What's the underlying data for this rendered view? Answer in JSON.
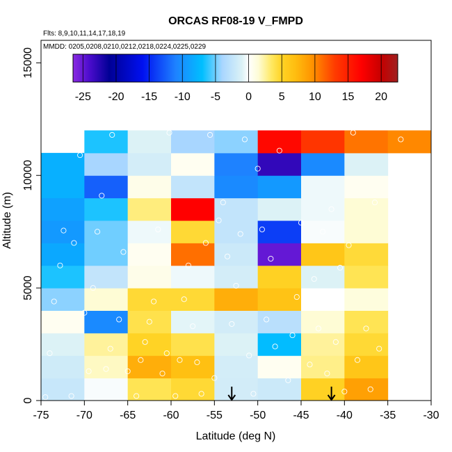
{
  "chart_data": {
    "type": "heatmap",
    "title": "ORCAS RF08-19 V_FMPD",
    "annotation_flights": "Flts: 8,9,10,11,14,17,18,19",
    "annotation_dates": "MMDD: 0205,0208,0210,0212,0218,0224,0225,0229",
    "xlabel": "Latitude (deg N)",
    "ylabel": "Altitude (m)",
    "xlim": [
      -75,
      -30
    ],
    "ylim": [
      0,
      16000
    ],
    "x_ticks": [
      -75,
      -70,
      -65,
      -60,
      -55,
      -50,
      -45,
      -40,
      -35,
      -30
    ],
    "y_ticks": [
      0,
      5000,
      10000,
      15000
    ],
    "x_bin_edges": [
      -75,
      -70,
      -65,
      -60,
      -55,
      -50,
      -45,
      -40,
      -35,
      -30
    ],
    "y_bin_edges": [
      0,
      1000,
      2000,
      3000,
      4000,
      5000,
      6000,
      7000,
      8000,
      9000,
      10000,
      11000,
      12000
    ],
    "cells": [
      [
        -2.2,
        -0.2,
        3.8,
        4.6,
        -1.6,
        -2.0,
        5.2,
        8.8,
        null
      ],
      [
        -1.8,
        1.8,
        8.0,
        6.8,
        -1.5,
        0.5,
        2.8,
        6.2,
        null
      ],
      [
        -1.0,
        2.5,
        5.0,
        4.0,
        -1.0,
        -7.2,
        2.5,
        4.6,
        null
      ],
      [
        0.5,
        -10.5,
        4.0,
        -0.8,
        -1.6,
        -3.0,
        1.5,
        3.8,
        null
      ],
      [
        -4.5,
        1.5,
        4.6,
        4.6,
        8.0,
        6.5,
        0.0,
        1.2,
        null
      ],
      [
        -6.5,
        -2.5,
        0.8,
        -0.5,
        -1.5,
        5.2,
        -1.0,
        3.8,
        null
      ],
      [
        -8.5,
        -5.0,
        0.5,
        11.0,
        -2.0,
        -25.0,
        6.2,
        4.5,
        null
      ],
      [
        -9.5,
        -5.0,
        -0.5,
        4.6,
        -2.5,
        -14.0,
        -0.2,
        1.5,
        null
      ],
      [
        -9.0,
        -6.5,
        3.0,
        17.0,
        -2.5,
        -1.0,
        -0.5,
        1.5,
        null
      ],
      [
        -8.0,
        -12.5,
        0.8,
        -2.5,
        -10.5,
        -9.5,
        -0.5,
        0.5,
        null
      ],
      [
        -8.0,
        -4.0,
        -1.5,
        0.5,
        -11.0,
        -23.0,
        -10.5,
        -1.0,
        null
      ],
      [
        null,
        -6.5,
        -1.0,
        -4.0,
        -4.5,
        16.5,
        13.5,
        10.8,
        10.0
      ]
    ],
    "colorbar": {
      "range": [
        -26.5,
        22.5
      ],
      "ticks": [
        -25,
        -20,
        -15,
        -10,
        -5,
        0,
        5,
        10,
        15,
        20
      ],
      "stops": [
        {
          "v": -26.5,
          "c": "#8a2be2"
        },
        {
          "v": -24.0,
          "c": "#4b0ccc"
        },
        {
          "v": -21.0,
          "c": "#000095"
        },
        {
          "v": -16.0,
          "c": "#0010f0"
        },
        {
          "v": -11.0,
          "c": "#1e82ff"
        },
        {
          "v": -7.0,
          "c": "#00bfff"
        },
        {
          "v": -4.0,
          "c": "#a8d6ff"
        },
        {
          "v": -1.0,
          "c": "#dcf2f6"
        },
        {
          "v": 0.0,
          "c": "#ffffff"
        },
        {
          "v": 1.5,
          "c": "#fefcd5"
        },
        {
          "v": 3.5,
          "c": "#ffe860"
        },
        {
          "v": 5.0,
          "c": "#ffd325"
        },
        {
          "v": 7.0,
          "c": "#ffbe10"
        },
        {
          "v": 9.5,
          "c": "#ff9500"
        },
        {
          "v": 13.0,
          "c": "#ff3c00"
        },
        {
          "v": 17.0,
          "c": "#ff0000"
        },
        {
          "v": 20.0,
          "c": "#c60000"
        },
        {
          "v": 22.5,
          "c": "#9f2020"
        }
      ]
    },
    "markers": [
      {
        "type": "arrow-down",
        "x": -53,
        "label": ""
      },
      {
        "type": "arrow-down",
        "x": -41.5,
        "label": ""
      }
    ],
    "sample_points": [
      [
        -74.5,
        150
      ],
      [
        -74.0,
        2100
      ],
      [
        -73.5,
        4400
      ],
      [
        -72.8,
        6000
      ],
      [
        -72.4,
        7550
      ],
      [
        -71.5,
        200
      ],
      [
        -71.2,
        7000
      ],
      [
        -70.5,
        10900
      ],
      [
        -70.0,
        3900
      ],
      [
        -69.5,
        1300
      ],
      [
        -69.0,
        5000
      ],
      [
        -68.5,
        7500
      ],
      [
        -68.0,
        9100
      ],
      [
        -67.5,
        1400
      ],
      [
        -67.0,
        2300
      ],
      [
        -66.8,
        11800
      ],
      [
        -66.0,
        3600
      ],
      [
        -65.5,
        6600
      ],
      [
        -65.0,
        1300
      ],
      [
        -64.0,
        200
      ],
      [
        -63.5,
        1800
      ],
      [
        -63.0,
        2600
      ],
      [
        -62.5,
        3500
      ],
      [
        -62.0,
        4400
      ],
      [
        -61.5,
        7600
      ],
      [
        -61.0,
        1200
      ],
      [
        -60.5,
        2100
      ],
      [
        -60.2,
        11900
      ],
      [
        -59.5,
        200
      ],
      [
        -59.0,
        1800
      ],
      [
        -58.5,
        4500
      ],
      [
        -58.0,
        6000
      ],
      [
        -57.5,
        3300
      ],
      [
        -57.0,
        1700
      ],
      [
        -56.5,
        300
      ],
      [
        -56.0,
        7000
      ],
      [
        -55.5,
        11800
      ],
      [
        -55.0,
        1000
      ],
      [
        -54.5,
        8000
      ],
      [
        -54.0,
        8800
      ],
      [
        -53.5,
        6400
      ],
      [
        -53.0,
        3400
      ],
      [
        -52.5,
        5100
      ],
      [
        -52.0,
        7400
      ],
      [
        -51.5,
        11600
      ],
      [
        -51.0,
        2000
      ],
      [
        -50.5,
        300
      ],
      [
        -50.0,
        10300
      ],
      [
        -49.5,
        7600
      ],
      [
        -49.0,
        3600
      ],
      [
        -48.5,
        6300
      ],
      [
        -48.0,
        2400
      ],
      [
        -47.5,
        11100
      ],
      [
        -46.5,
        900
      ],
      [
        -46.0,
        2900
      ],
      [
        -45.5,
        4600
      ],
      [
        -45.0,
        7900
      ],
      [
        -44.0,
        1600
      ],
      [
        -43.5,
        5400
      ],
      [
        -43.0,
        3200
      ],
      [
        -42.5,
        7500
      ],
      [
        -42.0,
        1200
      ],
      [
        -41.5,
        8500
      ],
      [
        -41.0,
        2600
      ],
      [
        -40.5,
        5900
      ],
      [
        -40.0,
        400
      ],
      [
        -39.5,
        6900
      ],
      [
        -39.0,
        11900
      ],
      [
        -38.5,
        1800
      ],
      [
        -37.5,
        3200
      ],
      [
        -37.0,
        500
      ],
      [
        -36.5,
        8800
      ],
      [
        -36.0,
        2300
      ],
      [
        -33.5,
        11600
      ]
    ]
  }
}
